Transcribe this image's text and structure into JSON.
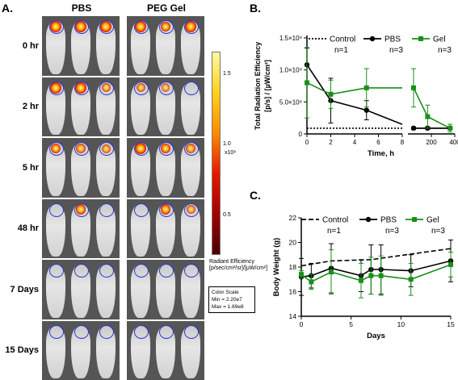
{
  "panel_a": {
    "letter": "A.",
    "columns": [
      "PBS",
      "PEG Gel"
    ],
    "rows": [
      "0 hr",
      "2 hr",
      "5 hr",
      "48 hr",
      "7 Days",
      "15 Days"
    ],
    "colorbar": {
      "ticks": [
        "1.5",
        "1.0",
        "0.5"
      ],
      "multiplier": "x10⁸",
      "title_line1": "Radiant Efficiency",
      "title_line2": "[p/sec/cm²/sr]/[µW/cm²]",
      "scale_title": "Color Scale",
      "scale_min": "Min = 2.20e7",
      "scale_max": "Max = 1.69e8"
    }
  },
  "chart_data": [
    {
      "panel": "B.",
      "type": "line",
      "ylabel_line1": "Total Radiation Efficiency",
      "ylabel_line2": "[p/s] / [µW/cm²]",
      "xlabel": "Time, h",
      "ylim": [
        0,
        1500000000
      ],
      "yticks": [
        "0",
        "5.0×10⁸",
        "1.0×10⁹",
        "1.5×10⁹"
      ],
      "segments": [
        {
          "xlim": [
            0,
            8
          ],
          "xticks": [
            "0",
            "2",
            "4",
            "6",
            "8"
          ]
        },
        {
          "xlim": [
            0,
            400
          ],
          "xticks": [
            "200",
            "400"
          ]
        }
      ],
      "legend": [
        {
          "name": "Control",
          "n": "n=1",
          "color": "#000000",
          "style": "dotted"
        },
        {
          "name": "PBS",
          "n": "n=3",
          "color": "#000000",
          "style": "solid"
        },
        {
          "name": "Gel",
          "n": "n=3",
          "color": "#1a8f1a",
          "style": "solid"
        }
      ],
      "series": [
        {
          "name": "Control",
          "x": [
            0,
            8,
            48,
            168,
            360
          ],
          "y": [
            90000000,
            90000000,
            90000000,
            90000000,
            90000000
          ],
          "err": [
            0,
            0,
            0,
            0,
            0
          ]
        },
        {
          "name": "PBS",
          "x": [
            0,
            2,
            5,
            8,
            48,
            168,
            360
          ],
          "y": [
            1080000000,
            520000000,
            370000000,
            150000000,
            90000000,
            90000000,
            90000000
          ],
          "err": [
            260000000,
            350000000,
            150000000,
            0,
            20000000,
            20000000,
            20000000
          ]
        },
        {
          "name": "Gel",
          "x": [
            0,
            2,
            5,
            8,
            48,
            168,
            360
          ],
          "y": [
            800000000,
            620000000,
            720000000,
            720000000,
            720000000,
            270000000,
            90000000
          ],
          "err": [
            550000000,
            220000000,
            300000000,
            0,
            300000000,
            180000000,
            60000000
          ]
        }
      ]
    },
    {
      "panel": "C.",
      "type": "line",
      "ylabel": "Body Weight (g)",
      "xlabel": "Days",
      "xlim": [
        0,
        15
      ],
      "ylim": [
        14,
        22
      ],
      "xticks": [
        0,
        5,
        10,
        15
      ],
      "yticks": [
        14,
        16,
        18,
        20,
        22
      ],
      "legend": [
        {
          "name": "Control",
          "n": "n=1",
          "color": "#000000",
          "style": "dashed"
        },
        {
          "name": "PBS",
          "n": "n=3",
          "color": "#000000",
          "style": "solid"
        },
        {
          "name": "Gel",
          "n": "n=3",
          "color": "#1a8f1a",
          "style": "solid"
        }
      ],
      "series": [
        {
          "name": "Control",
          "x": [
            0,
            3,
            7,
            15
          ],
          "y": [
            18.1,
            18.5,
            18.6,
            19.5
          ],
          "err": [
            0,
            0,
            0,
            0
          ]
        },
        {
          "name": "PBS",
          "x": [
            0,
            1,
            3,
            6,
            7,
            8,
            11,
            15
          ],
          "y": [
            17.2,
            17.3,
            17.9,
            17.3,
            17.8,
            17.8,
            17.7,
            18.5
          ],
          "err": [
            1.5,
            1.0,
            2.0,
            1.3,
            2.0,
            2.0,
            1.3,
            1.7
          ]
        },
        {
          "name": "Gel",
          "x": [
            0,
            1,
            3,
            6,
            7,
            8,
            11,
            15
          ],
          "y": [
            17.4,
            16.8,
            17.6,
            16.9,
            17.3,
            17.3,
            17.0,
            18.2
          ],
          "err": [
            0.3,
            0.6,
            1.8,
            1.4,
            1.5,
            1.6,
            1.3,
            1.0
          ]
        }
      ]
    }
  ]
}
